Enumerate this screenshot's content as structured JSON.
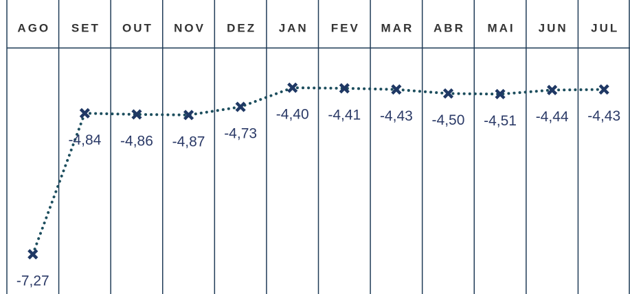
{
  "chart_data": {
    "type": "line",
    "categories": [
      "AGO",
      "SET",
      "OUT",
      "NOV",
      "DEZ",
      "JAN",
      "FEV",
      "MAR",
      "ABR",
      "MAI",
      "JUN",
      "JUL"
    ],
    "values": [
      -7.27,
      -4.84,
      -4.86,
      -4.87,
      -4.73,
      -4.4,
      -4.41,
      -4.43,
      -4.5,
      -4.51,
      -4.44,
      -4.43
    ],
    "value_labels": [
      "-7,27",
      "-4,84",
      "-4,86",
      "-4,87",
      "-4,73",
      "-4,40",
      "-4,41",
      "-4,43",
      "-4,50",
      "-4,51",
      "-4,44",
      "-4,43"
    ],
    "color": "#1d4e5e",
    "marker_color": "#1f3864"
  }
}
